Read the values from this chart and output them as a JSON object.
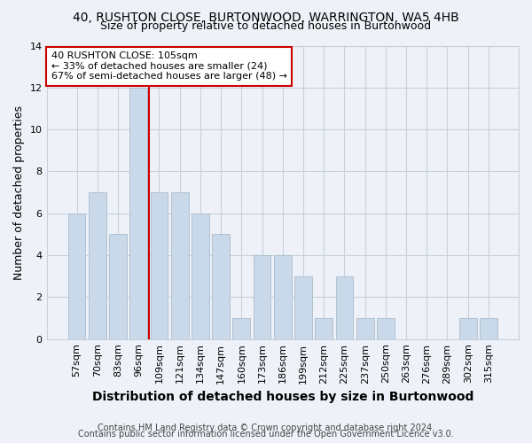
{
  "title1": "40, RUSHTON CLOSE, BURTONWOOD, WARRINGTON, WA5 4HB",
  "title2": "Size of property relative to detached houses in Burtonwood",
  "xlabel": "Distribution of detached houses by size in Burtonwood",
  "ylabel": "Number of detached properties",
  "categories": [
    "57sqm",
    "70sqm",
    "83sqm",
    "96sqm",
    "109sqm",
    "121sqm",
    "134sqm",
    "147sqm",
    "160sqm",
    "173sqm",
    "186sqm",
    "199sqm",
    "212sqm",
    "225sqm",
    "237sqm",
    "250sqm",
    "263sqm",
    "276sqm",
    "289sqm",
    "302sqm",
    "315sqm"
  ],
  "values": [
    6,
    7,
    5,
    12,
    7,
    7,
    6,
    5,
    1,
    4,
    4,
    3,
    1,
    3,
    1,
    1,
    0,
    0,
    0,
    1,
    1
  ],
  "bar_color": "#c9d9ea",
  "bar_edge_color": "#aabccc",
  "grid_color": "#c8d0dc",
  "background_color": "#eef2f8",
  "red_line_x": 4.0,
  "annotation_text": "40 RUSHTON CLOSE: 105sqm\n← 33% of detached houses are smaller (24)\n67% of semi-detached houses are larger (48) →",
  "annotation_box_color": "#ffffff",
  "annotation_border_color": "#cc0000",
  "footer1": "Contains HM Land Registry data © Crown copyright and database right 2024.",
  "footer2": "Contains public sector information licensed under the Open Government Licence v3.0.",
  "ylim": [
    0,
    14
  ],
  "yticks": [
    0,
    2,
    4,
    6,
    8,
    10,
    12,
    14
  ],
  "title1_fontsize": 10,
  "title2_fontsize": 9,
  "ylabel_fontsize": 9,
  "xlabel_fontsize": 10,
  "tick_fontsize": 8,
  "annotation_fontsize": 8,
  "footer_fontsize": 7
}
